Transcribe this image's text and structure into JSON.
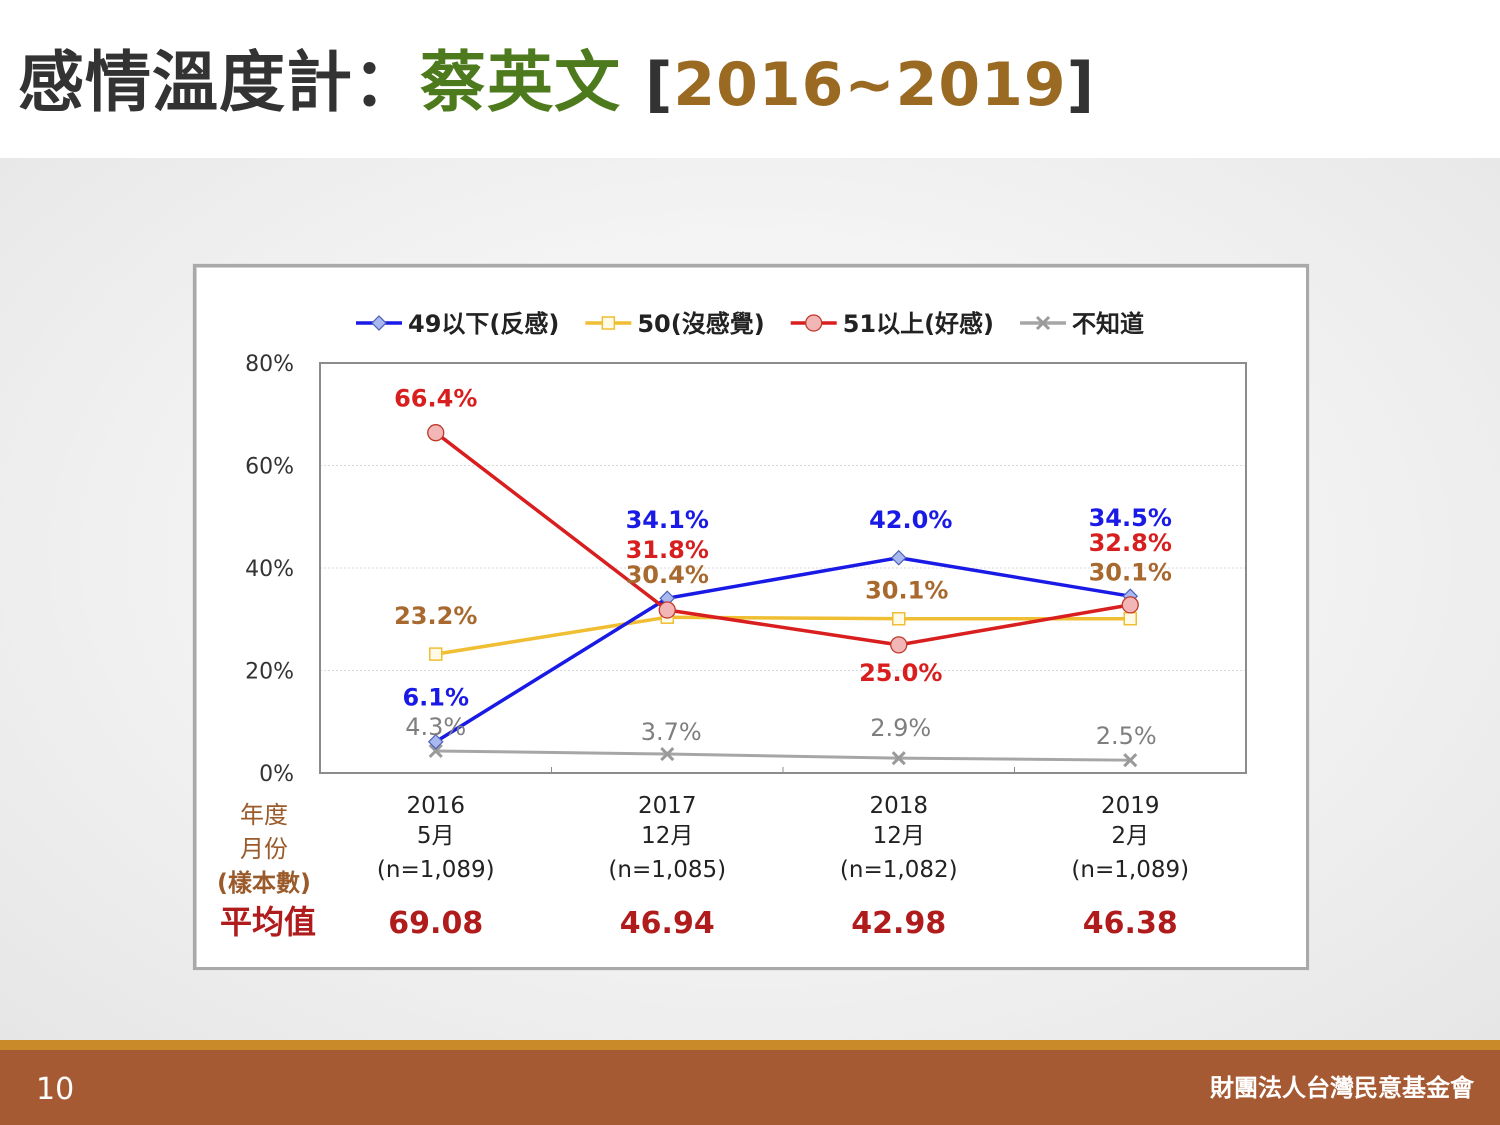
{
  "slide": {
    "title_prefix": "感情溫度計：",
    "title_name": "蔡英文",
    "title_bracket_open": "[",
    "title_years": "2016~2019",
    "title_bracket_close": "]",
    "page_number": "10",
    "organization": "財團法人台灣民意基金會"
  },
  "colors": {
    "negative": "#1a1ae6",
    "neutral": "#f0be32",
    "positive": "#d81e1e",
    "unknown": "#a6a6a6",
    "neutral_label": "#a8692e",
    "avg_label": "#b01c1c",
    "row_label": "#9a5a2a"
  },
  "chart_data": {
    "type": "line",
    "categories": [
      "2016",
      "2017",
      "2018",
      "2019"
    ],
    "category_months": [
      "5月",
      "12月",
      "12月",
      "2月"
    ],
    "category_samples": [
      "(n=1,089)",
      "(n=1,085)",
      "(n=1,082)",
      "(n=1,089)"
    ],
    "series": [
      {
        "name": "49以下(反感)",
        "key": "negative",
        "marker": "diamond",
        "values": [
          6.1,
          34.1,
          42.0,
          34.5
        ],
        "labels": [
          "6.1%",
          "34.1%",
          "42.0%",
          "34.5%"
        ]
      },
      {
        "name": "50(沒感覺)",
        "key": "neutral",
        "marker": "square",
        "values": [
          23.2,
          30.4,
          30.1,
          30.1
        ],
        "labels": [
          "23.2%",
          "30.4%",
          "30.1%",
          "30.1%"
        ]
      },
      {
        "name": "51以上(好感)",
        "key": "positive",
        "marker": "circle",
        "values": [
          66.4,
          31.8,
          25.0,
          32.8
        ],
        "labels": [
          "66.4%",
          "31.8%",
          "25.0%",
          "32.8%"
        ]
      },
      {
        "name": "不知道",
        "key": "unknown",
        "marker": "x",
        "values": [
          4.3,
          3.7,
          2.9,
          2.5
        ],
        "labels": [
          "4.3%",
          "3.7%",
          "2.9%",
          "2.5%"
        ]
      }
    ],
    "y_ticks": [
      "0%",
      "20%",
      "40%",
      "60%",
      "80%"
    ],
    "ylim": [
      0,
      80
    ],
    "row_labels": [
      "年度",
      "月份",
      "(樣本數)"
    ],
    "average_label": "平均值",
    "averages": [
      "69.08",
      "46.94",
      "42.98",
      "46.38"
    ],
    "grid": true,
    "legend_position": "top"
  }
}
